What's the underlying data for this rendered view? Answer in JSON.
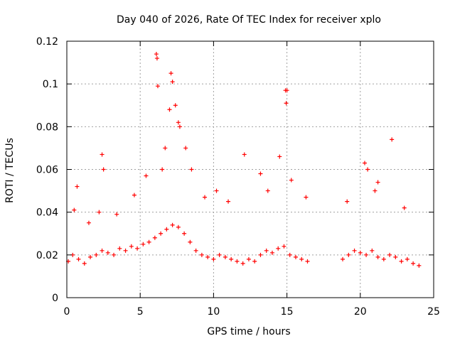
{
  "chart_data": {
    "type": "scatter",
    "title": "Day 040 of 2026, Rate Of TEC Index for receiver xplo",
    "xlabel": "GPS time / hours",
    "ylabel": "ROTI / TECUs",
    "xlim": [
      0,
      25
    ],
    "ylim": [
      0,
      0.12
    ],
    "xticks": [
      0,
      5,
      10,
      15,
      20,
      25
    ],
    "xtick_labels": [
      "0",
      "5",
      "10",
      "15",
      "20",
      "25"
    ],
    "yticks": [
      0,
      0.02,
      0.04,
      0.06,
      0.08,
      0.1,
      0.12
    ],
    "ytick_labels": [
      "0",
      "0.02",
      "0.04",
      "0.06",
      "0.08",
      "0.1",
      "0.12"
    ],
    "grid": true,
    "marker": "+",
    "color": "#ff0000",
    "series": [
      {
        "name": "ROTI",
        "x": [
          0.1,
          0.4,
          0.8,
          1.2,
          1.6,
          2.0,
          2.4,
          2.8,
          3.2,
          3.6,
          4.0,
          4.4,
          4.8,
          5.2,
          5.6,
          6.0,
          6.4,
          6.8,
          7.2,
          7.6,
          8.0,
          8.4,
          8.8,
          9.2,
          9.6,
          10.0,
          10.4,
          10.8,
          11.2,
          11.6,
          12.0,
          12.4,
          12.8,
          13.2,
          13.6,
          14.0,
          14.4,
          14.8,
          15.2,
          15.6,
          16.0,
          16.4,
          18.8,
          19.2,
          19.6,
          20.0,
          20.4,
          20.8,
          21.2,
          21.6,
          22.0,
          22.4,
          22.8,
          23.2,
          23.6,
          24.0,
          6.1,
          6.15,
          6.2,
          7.1,
          7.2,
          7.6,
          7.7,
          14.9,
          14.95,
          15.0,
          22.15,
          2.4,
          2.5,
          12.1,
          0.7,
          3.4,
          4.6,
          5.4,
          8.5,
          9.4,
          13.2,
          14.5,
          15.3,
          16.3,
          20.3,
          20.5,
          21.0,
          21.2,
          0.5,
          1.5,
          2.2,
          6.5,
          6.7,
          7.0,
          7.4,
          8.1,
          10.2,
          11.0,
          13.7,
          19.1,
          23.0
        ],
        "y": [
          0.017,
          0.02,
          0.018,
          0.016,
          0.019,
          0.02,
          0.022,
          0.021,
          0.02,
          0.023,
          0.022,
          0.024,
          0.023,
          0.025,
          0.026,
          0.028,
          0.03,
          0.032,
          0.034,
          0.033,
          0.03,
          0.026,
          0.022,
          0.02,
          0.019,
          0.018,
          0.02,
          0.019,
          0.018,
          0.017,
          0.016,
          0.018,
          0.017,
          0.02,
          0.022,
          0.021,
          0.023,
          0.024,
          0.02,
          0.019,
          0.018,
          0.017,
          0.018,
          0.02,
          0.022,
          0.021,
          0.02,
          0.022,
          0.019,
          0.018,
          0.02,
          0.019,
          0.017,
          0.018,
          0.016,
          0.015,
          0.114,
          0.112,
          0.099,
          0.105,
          0.101,
          0.082,
          0.08,
          0.097,
          0.091,
          0.097,
          0.074,
          0.067,
          0.06,
          0.067,
          0.052,
          0.039,
          0.048,
          0.057,
          0.06,
          0.047,
          0.058,
          0.066,
          0.055,
          0.047,
          0.063,
          0.06,
          0.05,
          0.054,
          0.041,
          0.035,
          0.04,
          0.06,
          0.07,
          0.088,
          0.09,
          0.07,
          0.05,
          0.045,
          0.05,
          0.045,
          0.042
        ]
      }
    ]
  }
}
